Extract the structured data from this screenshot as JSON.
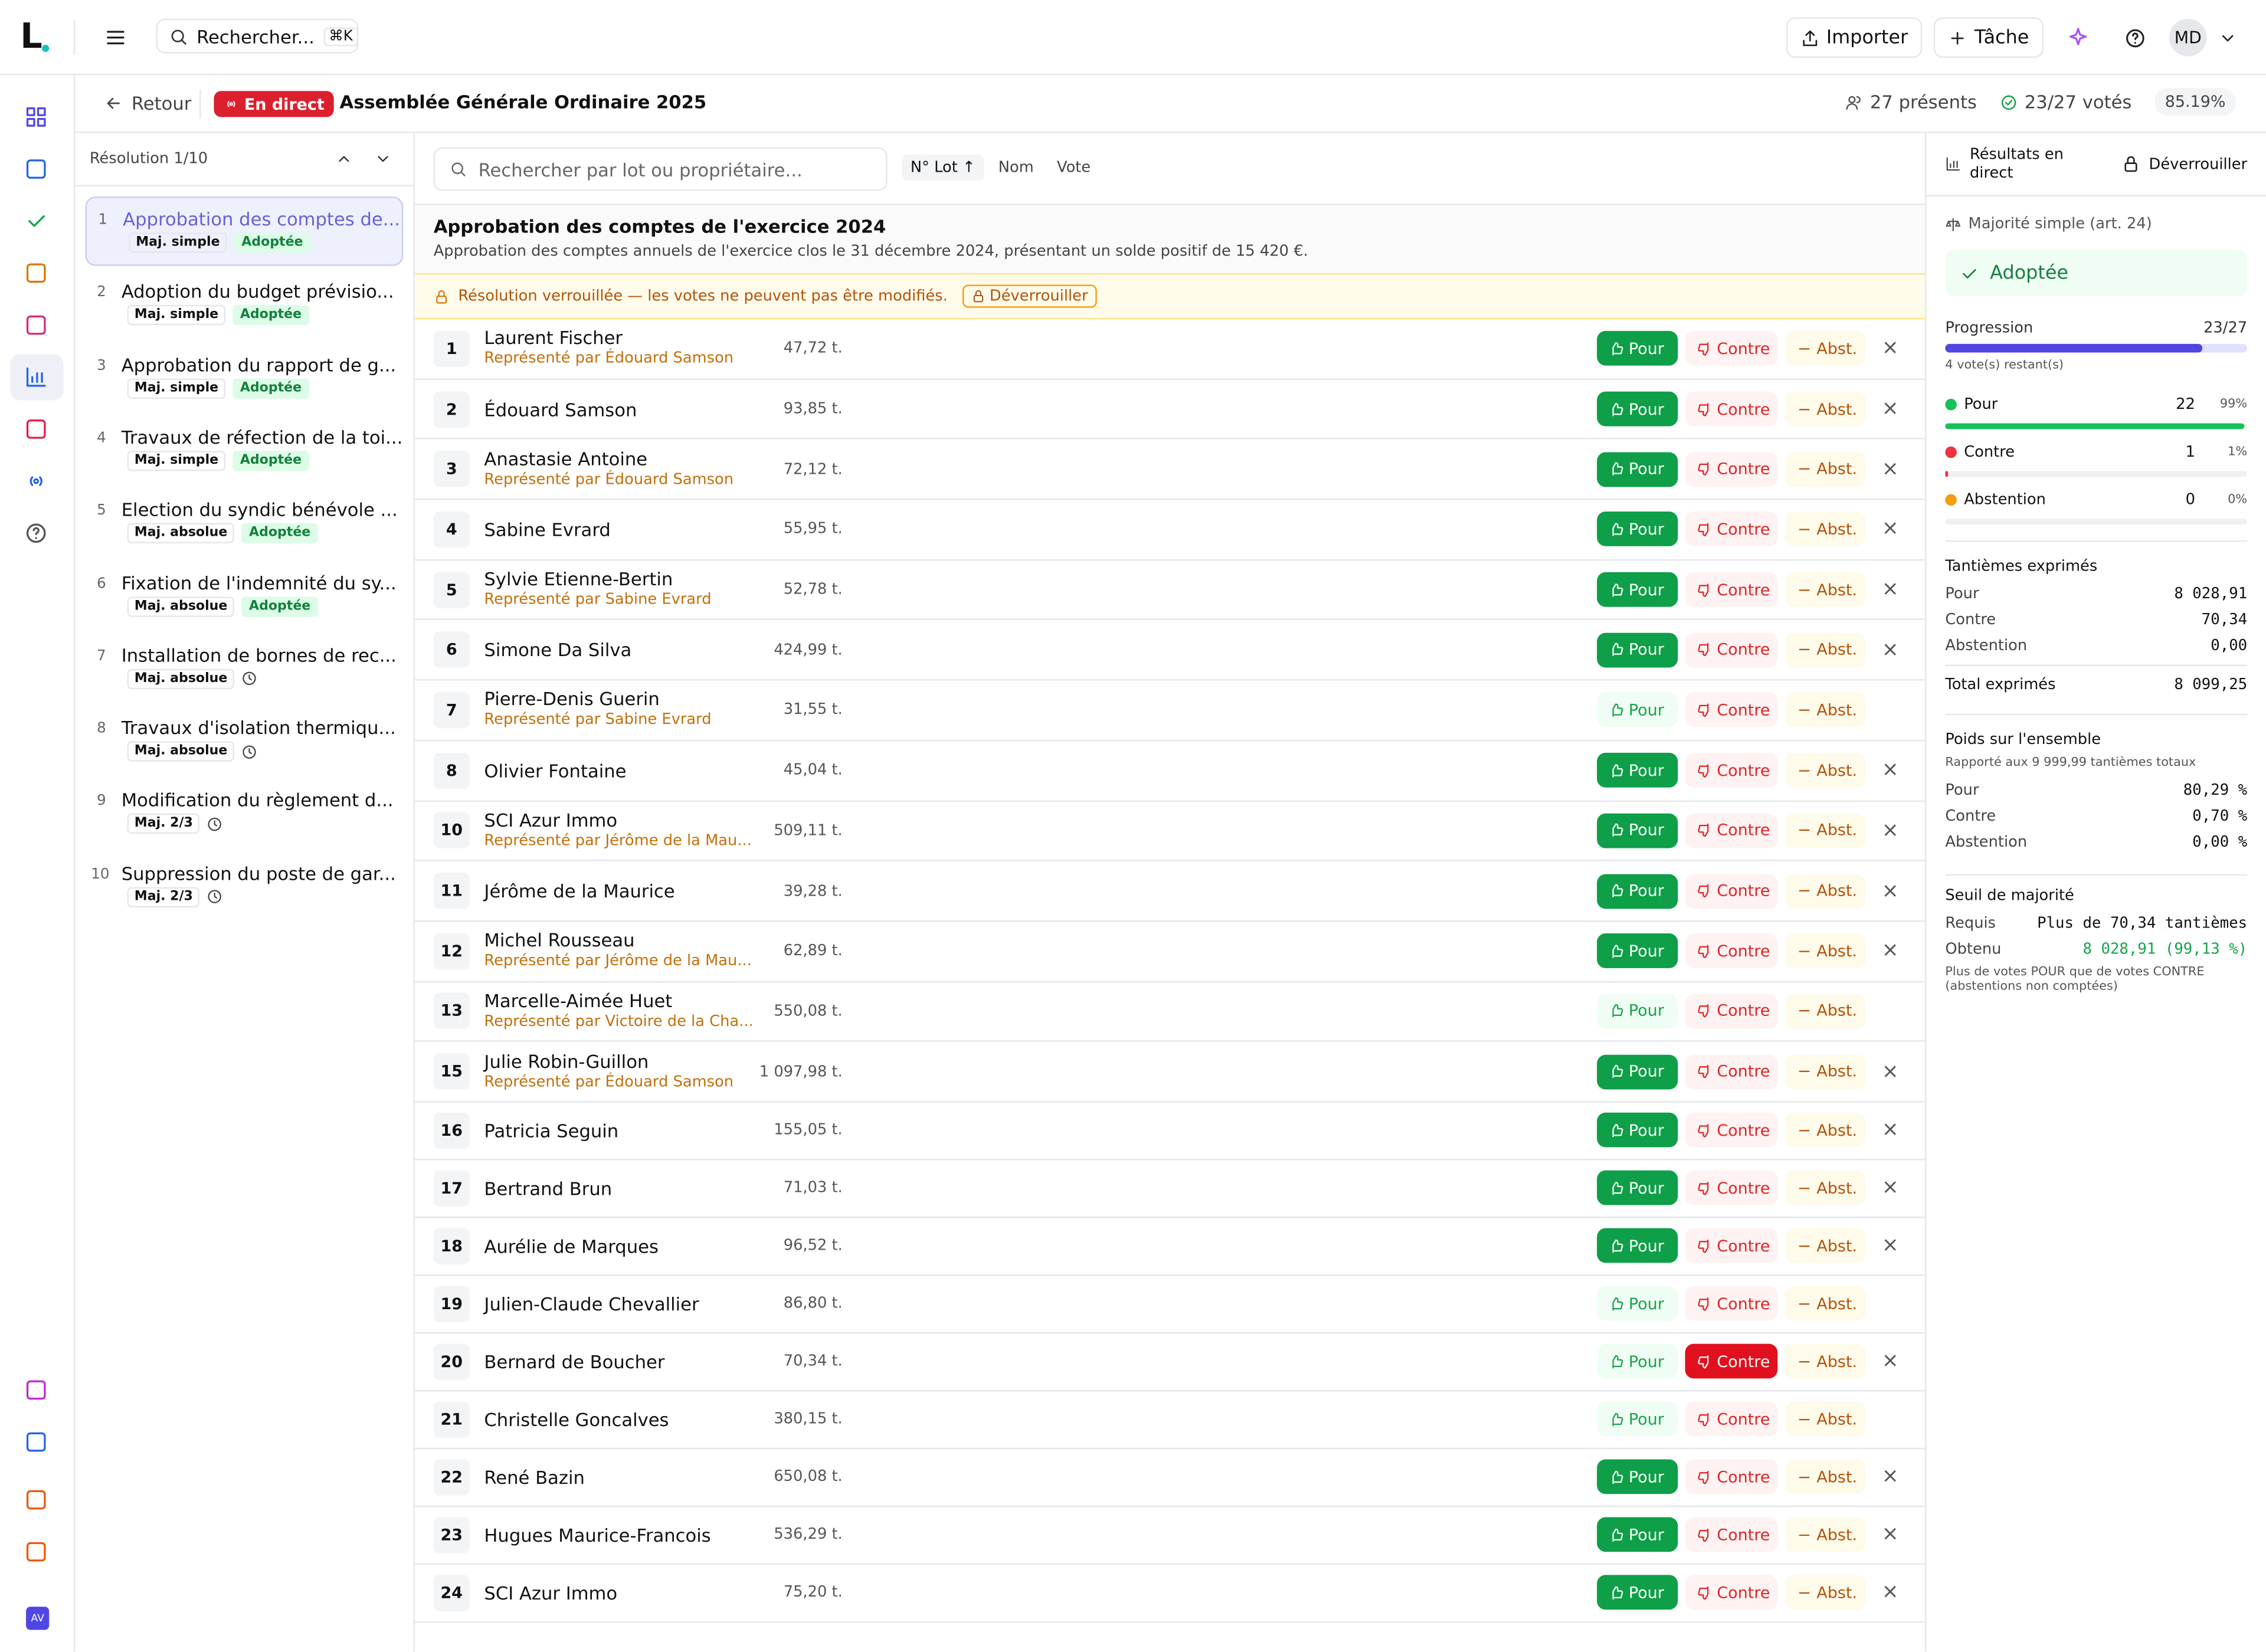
{
  "topbar": {
    "logo": "L",
    "search": "Rechercher...",
    "shortcut": "⌘K",
    "import": "Importer",
    "task": "Tâche",
    "avatar": "MD"
  },
  "header": {
    "back": "Retour",
    "live": "En direct",
    "title": "Assemblée Générale Ordinaire 2025",
    "present": "27 présents",
    "voted": "23/27 votés",
    "rate": "85.19%"
  },
  "rail": {
    "badge": "AV"
  },
  "resolutions": {
    "label": "Résolution 1/10",
    "items": [
      {
        "num": "1",
        "title": "Approbation des comptes de...",
        "majority": "Maj. simple",
        "status": "Adoptée"
      },
      {
        "num": "2",
        "title": "Adoption du budget prévisio...",
        "majority": "Maj. simple",
        "status": "Adoptée"
      },
      {
        "num": "3",
        "title": "Approbation du rapport de g...",
        "majority": "Maj. simple",
        "status": "Adoptée"
      },
      {
        "num": "4",
        "title": "Travaux de réfection de la toi...",
        "majority": "Maj. simple",
        "status": "Adoptée"
      },
      {
        "num": "5",
        "title": "Election du syndic bénévole ...",
        "majority": "Maj. absolue",
        "status": "Adoptée"
      },
      {
        "num": "6",
        "title": "Fixation de l'indemnité du sy...",
        "majority": "Maj. absolue",
        "status": "Adoptée"
      },
      {
        "num": "7",
        "title": "Installation de bornes de rec...",
        "majority": "Maj. absolue"
      },
      {
        "num": "8",
        "title": "Travaux d'isolation thermiqu...",
        "majority": "Maj. absolue"
      },
      {
        "num": "9",
        "title": "Modification du règlement d...",
        "majority": "Maj. 2/3"
      },
      {
        "num": "10",
        "title": "Suppression du poste de gar...",
        "majority": "Maj. 2/3"
      }
    ]
  },
  "toolbar": {
    "search": "Rechercher par lot ou propriétaire...",
    "sorts": [
      "N° Lot ↑",
      "Nom",
      "Vote"
    ]
  },
  "resolution": {
    "title": "Approbation des comptes de l'exercice 2024",
    "description": "Approbation des comptes annuels de l'exercice clos le 31 décembre 2024, présentant un solde positif de 15 420 €.",
    "lock": "Résolution verrouillée — les votes ne peuvent pas être modifiés.",
    "unlock": "Déverrouiller"
  },
  "vote_labels": {
    "pour": "Pour",
    "contre": "Contre",
    "abst": "Abst.",
    "clear": "×"
  },
  "rows": [
    {
      "lot": "1",
      "name": "Laurent Fischer",
      "proxy": "Représenté par Édouard Samson",
      "tantiemes": "47,72 t.",
      "vote": "pour"
    },
    {
      "lot": "2",
      "name": "Édouard Samson",
      "tantiemes": "93,85 t.",
      "vote": "pour"
    },
    {
      "lot": "3",
      "name": "Anastasie Antoine",
      "proxy": "Représenté par Édouard Samson",
      "tantiemes": "72,12 t.",
      "vote": "pour"
    },
    {
      "lot": "4",
      "name": "Sabine Evrard",
      "tantiemes": "55,95 t.",
      "vote": "pour"
    },
    {
      "lot": "5",
      "name": "Sylvie Etienne-Bertin",
      "proxy": "Représenté par Sabine Evrard",
      "tantiemes": "52,78 t.",
      "vote": "pour"
    },
    {
      "lot": "6",
      "name": "Simone Da Silva",
      "tantiemes": "424,99 t.",
      "vote": "pour"
    },
    {
      "lot": "7",
      "name": "Pierre-Denis Guerin",
      "proxy": "Représenté par Sabine Evrard",
      "tantiemes": "31,55 t."
    },
    {
      "lot": "8",
      "name": "Olivier Fontaine",
      "tantiemes": "45,04 t.",
      "vote": "pour"
    },
    {
      "lot": "10",
      "name": "SCI Azur Immo",
      "proxy": "Représenté par Jérôme de la Mau...",
      "tantiemes": "509,11 t.",
      "vote": "pour"
    },
    {
      "lot": "11",
      "name": "Jérôme de la Maurice",
      "tantiemes": "39,28 t.",
      "vote": "pour"
    },
    {
      "lot": "12",
      "name": "Michel Rousseau",
      "proxy": "Représenté par Jérôme de la Mau...",
      "tantiemes": "62,89 t.",
      "vote": "pour"
    },
    {
      "lot": "13",
      "name": "Marcelle-Aimée Huet",
      "proxy": "Représenté par Victoire de la Cha...",
      "tantiemes": "550,08 t."
    },
    {
      "lot": "15",
      "name": "Julie Robin-Guillon",
      "proxy": "Représenté par Édouard Samson",
      "tantiemes": "1 097,98 t.",
      "vote": "pour"
    },
    {
      "lot": "16",
      "name": "Patricia Seguin",
      "tantiemes": "155,05 t.",
      "vote": "pour"
    },
    {
      "lot": "17",
      "name": "Bertrand Brun",
      "tantiemes": "71,03 t.",
      "vote": "pour"
    },
    {
      "lot": "18",
      "name": "Aurélie de Marques",
      "tantiemes": "96,52 t.",
      "vote": "pour"
    },
    {
      "lot": "19",
      "name": "Julien-Claude Chevallier",
      "tantiemes": "86,80 t."
    },
    {
      "lot": "20",
      "name": "Bernard de Boucher",
      "tantiemes": "70,34 t.",
      "vote": "contre"
    },
    {
      "lot": "21",
      "name": "Christelle Goncalves",
      "tantiemes": "380,15 t."
    },
    {
      "lot": "22",
      "name": "René Bazin",
      "tantiemes": "650,08 t.",
      "vote": "pour"
    },
    {
      "lot": "23",
      "name": "Hugues Maurice-Francois",
      "tantiemes": "536,29 t.",
      "vote": "pour"
    },
    {
      "lot": "24",
      "name": "SCI Azur Immo",
      "tantiemes": "75,20 t.",
      "vote": "pour"
    }
  ],
  "results": {
    "title": "Résultats en direct",
    "unlock": "Déverrouiller",
    "majority": "Majorité simple (art. 24)",
    "status": "Adoptée",
    "progress_label": "Progression",
    "progress": "23/27",
    "remaining": "4 vote(s) restant(s)",
    "counts": [
      {
        "label": "Pour",
        "count": "22",
        "pct": "99%",
        "color": "#16c15a"
      },
      {
        "label": "Contre",
        "count": "1",
        "pct": "1%",
        "color": "#ef3340"
      },
      {
        "label": "Abstention",
        "count": "0",
        "pct": "0%",
        "color": "#f59e0b"
      }
    ],
    "tantiemes": {
      "title": "Tantièmes exprimés",
      "rows": [
        [
          "Pour",
          "8 028,91"
        ],
        [
          "Contre",
          "70,34"
        ],
        [
          "Abstention",
          "0,00"
        ]
      ],
      "total": [
        "Total exprimés",
        "8 099,25"
      ]
    },
    "weight": {
      "title": "Poids sur l'ensemble",
      "note": "Rapporté aux 9 999,99 tantièmes totaux",
      "rows": [
        [
          "Pour",
          "80,29 %"
        ],
        [
          "Contre",
          "0,70 %"
        ],
        [
          "Abstention",
          "0,00 %"
        ]
      ]
    },
    "threshold": {
      "title": "Seuil de majorité",
      "required": [
        "Requis",
        "Plus de 70,34 tantièmes"
      ],
      "obtained": [
        "Obtenu",
        "8 028,91 (99,13 %)"
      ],
      "note": "Plus de votes POUR que de votes CONTRE (abstentions non comptées)"
    }
  }
}
